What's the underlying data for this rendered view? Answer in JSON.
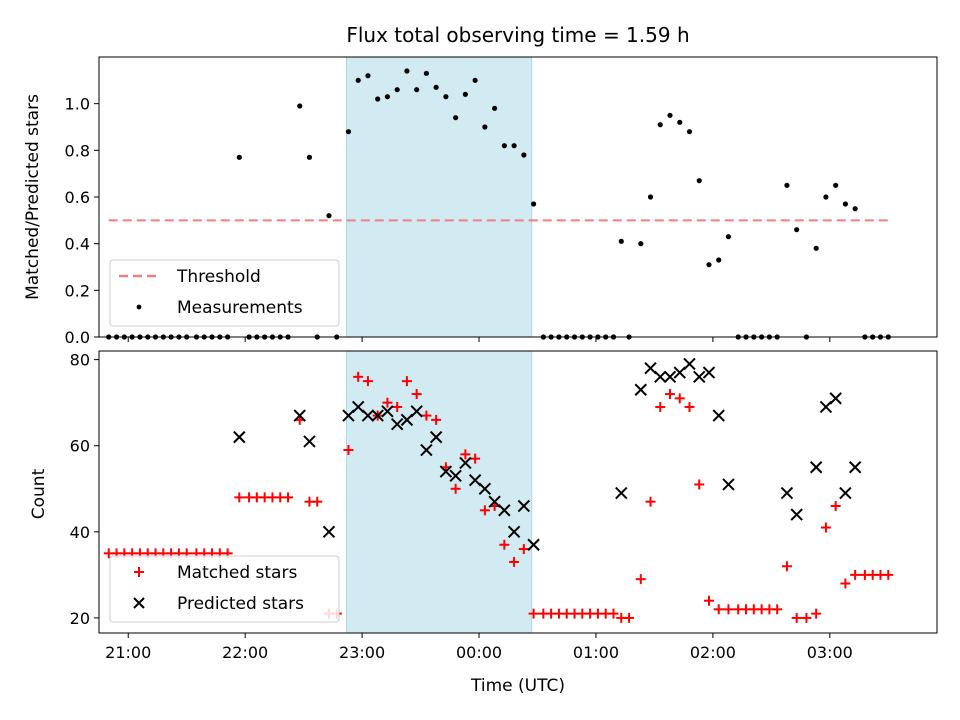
{
  "chart_data": [
    {
      "type": "scatter",
      "title": "Flux total observing time = 1.59 h",
      "xlabel": "",
      "ylabel": "Matched/Predicted stars",
      "ylim": [
        0,
        1.2
      ],
      "yticks": [
        0.0,
        0.2,
        0.4,
        0.6,
        0.8,
        1.0
      ],
      "ytick_labels": [
        "0.0",
        "0.2",
        "0.4",
        "0.6",
        "0.8",
        "1.0"
      ],
      "xlim": [
        "20:45",
        "03:55"
      ],
      "highlight_span": [
        "22:52",
        "00:27"
      ],
      "highlight_color": "#add8e6",
      "threshold": {
        "name": "Threshold",
        "value": 0.5,
        "x": [
          "20:50",
          "03:30"
        ],
        "color": "#f08080"
      },
      "legend": {
        "position": "lower-left",
        "entries": [
          "Threshold",
          "Measurements"
        ]
      },
      "series": [
        {
          "name": "Measurements",
          "color": "#000000",
          "points": [
            [
              "20:50",
              0
            ],
            [
              "20:54",
              0
            ],
            [
              "20:58",
              0
            ],
            [
              "21:02",
              0
            ],
            [
              "21:06",
              0
            ],
            [
              "21:10",
              0
            ],
            [
              "21:14",
              0
            ],
            [
              "21:18",
              0
            ],
            [
              "21:22",
              0
            ],
            [
              "21:26",
              0
            ],
            [
              "21:30",
              0
            ],
            [
              "21:35",
              0
            ],
            [
              "21:39",
              0
            ],
            [
              "21:43",
              0
            ],
            [
              "21:47",
              0
            ],
            [
              "21:51",
              0
            ],
            [
              "21:57",
              0.77
            ],
            [
              "22:02",
              0
            ],
            [
              "22:06",
              0
            ],
            [
              "22:10",
              0
            ],
            [
              "22:14",
              0
            ],
            [
              "22:18",
              0
            ],
            [
              "22:22",
              0
            ],
            [
              "22:28",
              0.99
            ],
            [
              "22:33",
              0.77
            ],
            [
              "22:37",
              0
            ],
            [
              "22:43",
              0.52
            ],
            [
              "22:47",
              0
            ],
            [
              "22:53",
              0.88
            ],
            [
              "22:58",
              1.1
            ],
            [
              "23:03",
              1.12
            ],
            [
              "23:08",
              1.02
            ],
            [
              "23:13",
              1.03
            ],
            [
              "23:18",
              1.06
            ],
            [
              "23:23",
              1.14
            ],
            [
              "23:28",
              1.06
            ],
            [
              "23:33",
              1.13
            ],
            [
              "23:38",
              1.07
            ],
            [
              "23:43",
              1.03
            ],
            [
              "23:48",
              0.94
            ],
            [
              "23:53",
              1.04
            ],
            [
              "23:58",
              1.1
            ],
            [
              "00:03",
              0.9
            ],
            [
              "00:08",
              0.98
            ],
            [
              "00:13",
              0.82
            ],
            [
              "00:18",
              0.82
            ],
            [
              "00:23",
              0.78
            ],
            [
              "00:28",
              0.57
            ],
            [
              "00:33",
              0
            ],
            [
              "00:37",
              0
            ],
            [
              "00:41",
              0
            ],
            [
              "00:45",
              0
            ],
            [
              "00:49",
              0
            ],
            [
              "00:53",
              0
            ],
            [
              "00:57",
              0
            ],
            [
              "01:01",
              0
            ],
            [
              "01:05",
              0
            ],
            [
              "01:09",
              0
            ],
            [
              "01:13",
              0.41
            ],
            [
              "01:17",
              0
            ],
            [
              "01:23",
              0.4
            ],
            [
              "01:28",
              0.6
            ],
            [
              "01:33",
              0.91
            ],
            [
              "01:38",
              0.95
            ],
            [
              "01:43",
              0.92
            ],
            [
              "01:48",
              0.88
            ],
            [
              "01:53",
              0.67
            ],
            [
              "01:58",
              0.31
            ],
            [
              "02:03",
              0.33
            ],
            [
              "02:08",
              0.43
            ],
            [
              "02:13",
              0
            ],
            [
              "02:17",
              0
            ],
            [
              "02:21",
              0
            ],
            [
              "02:25",
              0
            ],
            [
              "02:29",
              0
            ],
            [
              "02:33",
              0
            ],
            [
              "02:38",
              0.65
            ],
            [
              "02:43",
              0.46
            ],
            [
              "02:48",
              0
            ],
            [
              "02:53",
              0.38
            ],
            [
              "02:58",
              0.6
            ],
            [
              "03:03",
              0.65
            ],
            [
              "03:08",
              0.57
            ],
            [
              "03:13",
              0.55
            ],
            [
              "03:18",
              0
            ],
            [
              "03:22",
              0
            ],
            [
              "03:26",
              0
            ],
            [
              "03:30",
              0
            ]
          ]
        }
      ]
    },
    {
      "type": "scatter",
      "title": "",
      "xlabel": "Time (UTC)",
      "ylabel": "Count",
      "ylim": [
        16.5,
        82
      ],
      "yticks": [
        20,
        40,
        60,
        80
      ],
      "ytick_labels": [
        "20",
        "40",
        "60",
        "80"
      ],
      "xlim": [
        "20:45",
        "03:55"
      ],
      "xticks": [
        "21:00",
        "22:00",
        "23:00",
        "00:00",
        "01:00",
        "02:00",
        "03:00"
      ],
      "highlight_span": [
        "22:52",
        "00:27"
      ],
      "highlight_color": "#add8e6",
      "legend": {
        "position": "lower-left",
        "entries": [
          "Matched stars",
          "Predicted stars"
        ]
      },
      "series": [
        {
          "name": "Matched stars",
          "marker": "plus",
          "color": "#ff0000",
          "points": [
            [
              "20:50",
              35
            ],
            [
              "20:54",
              35
            ],
            [
              "20:58",
              35
            ],
            [
              "21:02",
              35
            ],
            [
              "21:06",
              35
            ],
            [
              "21:10",
              35
            ],
            [
              "21:14",
              35
            ],
            [
              "21:18",
              35
            ],
            [
              "21:22",
              35
            ],
            [
              "21:26",
              35
            ],
            [
              "21:30",
              35
            ],
            [
              "21:35",
              35
            ],
            [
              "21:39",
              35
            ],
            [
              "21:43",
              35
            ],
            [
              "21:47",
              35
            ],
            [
              "21:51",
              35
            ],
            [
              "21:57",
              48
            ],
            [
              "22:02",
              48
            ],
            [
              "22:06",
              48
            ],
            [
              "22:10",
              48
            ],
            [
              "22:14",
              48
            ],
            [
              "22:18",
              48
            ],
            [
              "22:22",
              48
            ],
            [
              "22:28",
              66
            ],
            [
              "22:33",
              47
            ],
            [
              "22:37",
              47
            ],
            [
              "22:43",
              21
            ],
            [
              "22:47",
              21
            ],
            [
              "22:53",
              59
            ],
            [
              "22:58",
              76
            ],
            [
              "23:03",
              75
            ],
            [
              "23:08",
              67
            ],
            [
              "23:13",
              70
            ],
            [
              "23:18",
              69
            ],
            [
              "23:23",
              75
            ],
            [
              "23:28",
              72
            ],
            [
              "23:33",
              67
            ],
            [
              "23:38",
              66
            ],
            [
              "23:43",
              55
            ],
            [
              "23:48",
              50
            ],
            [
              "23:53",
              58
            ],
            [
              "23:58",
              57
            ],
            [
              "00:03",
              45
            ],
            [
              "00:08",
              46
            ],
            [
              "00:13",
              37
            ],
            [
              "00:18",
              33
            ],
            [
              "00:23",
              36
            ],
            [
              "00:28",
              21
            ],
            [
              "00:33",
              21
            ],
            [
              "00:37",
              21
            ],
            [
              "00:41",
              21
            ],
            [
              "00:45",
              21
            ],
            [
              "00:49",
              21
            ],
            [
              "00:53",
              21
            ],
            [
              "00:57",
              21
            ],
            [
              "01:01",
              21
            ],
            [
              "01:05",
              21
            ],
            [
              "01:09",
              21
            ],
            [
              "01:13",
              20
            ],
            [
              "01:17",
              20
            ],
            [
              "01:23",
              29
            ],
            [
              "01:28",
              47
            ],
            [
              "01:33",
              69
            ],
            [
              "01:38",
              72
            ],
            [
              "01:43",
              71
            ],
            [
              "01:48",
              69
            ],
            [
              "01:53",
              51
            ],
            [
              "01:58",
              24
            ],
            [
              "02:03",
              22
            ],
            [
              "02:08",
              22
            ],
            [
              "02:13",
              22
            ],
            [
              "02:17",
              22
            ],
            [
              "02:21",
              22
            ],
            [
              "02:25",
              22
            ],
            [
              "02:29",
              22
            ],
            [
              "02:33",
              22
            ],
            [
              "02:38",
              32
            ],
            [
              "02:43",
              20
            ],
            [
              "02:48",
              20
            ],
            [
              "02:53",
              21
            ],
            [
              "02:58",
              41
            ],
            [
              "03:03",
              46
            ],
            [
              "03:08",
              28
            ],
            [
              "03:13",
              30
            ],
            [
              "03:18",
              30
            ],
            [
              "03:22",
              30
            ],
            [
              "03:26",
              30
            ],
            [
              "03:30",
              30
            ]
          ]
        },
        {
          "name": "Predicted stars",
          "marker": "x",
          "color": "#000000",
          "points": [
            [
              "21:57",
              62
            ],
            [
              "22:28",
              67
            ],
            [
              "22:33",
              61
            ],
            [
              "22:43",
              40
            ],
            [
              "22:53",
              67
            ],
            [
              "22:58",
              69
            ],
            [
              "23:03",
              67
            ],
            [
              "23:08",
              67
            ],
            [
              "23:13",
              68
            ],
            [
              "23:18",
              65
            ],
            [
              "23:23",
              66
            ],
            [
              "23:28",
              68
            ],
            [
              "23:33",
              59
            ],
            [
              "23:38",
              62
            ],
            [
              "23:43",
              54
            ],
            [
              "23:48",
              53
            ],
            [
              "23:53",
              56
            ],
            [
              "23:58",
              52
            ],
            [
              "00:03",
              50
            ],
            [
              "00:08",
              47
            ],
            [
              "00:13",
              45
            ],
            [
              "00:18",
              40
            ],
            [
              "00:23",
              46
            ],
            [
              "00:28",
              37
            ],
            [
              "01:13",
              49
            ],
            [
              "01:23",
              73
            ],
            [
              "01:28",
              78
            ],
            [
              "01:33",
              76
            ],
            [
              "01:38",
              76
            ],
            [
              "01:43",
              77
            ],
            [
              "01:48",
              79
            ],
            [
              "01:53",
              76
            ],
            [
              "01:58",
              77
            ],
            [
              "02:03",
              67
            ],
            [
              "02:08",
              51
            ],
            [
              "02:38",
              49
            ],
            [
              "02:43",
              44
            ],
            [
              "02:53",
              55
            ],
            [
              "02:58",
              69
            ],
            [
              "03:03",
              71
            ],
            [
              "03:08",
              49
            ],
            [
              "03:13",
              55
            ]
          ]
        }
      ]
    }
  ]
}
